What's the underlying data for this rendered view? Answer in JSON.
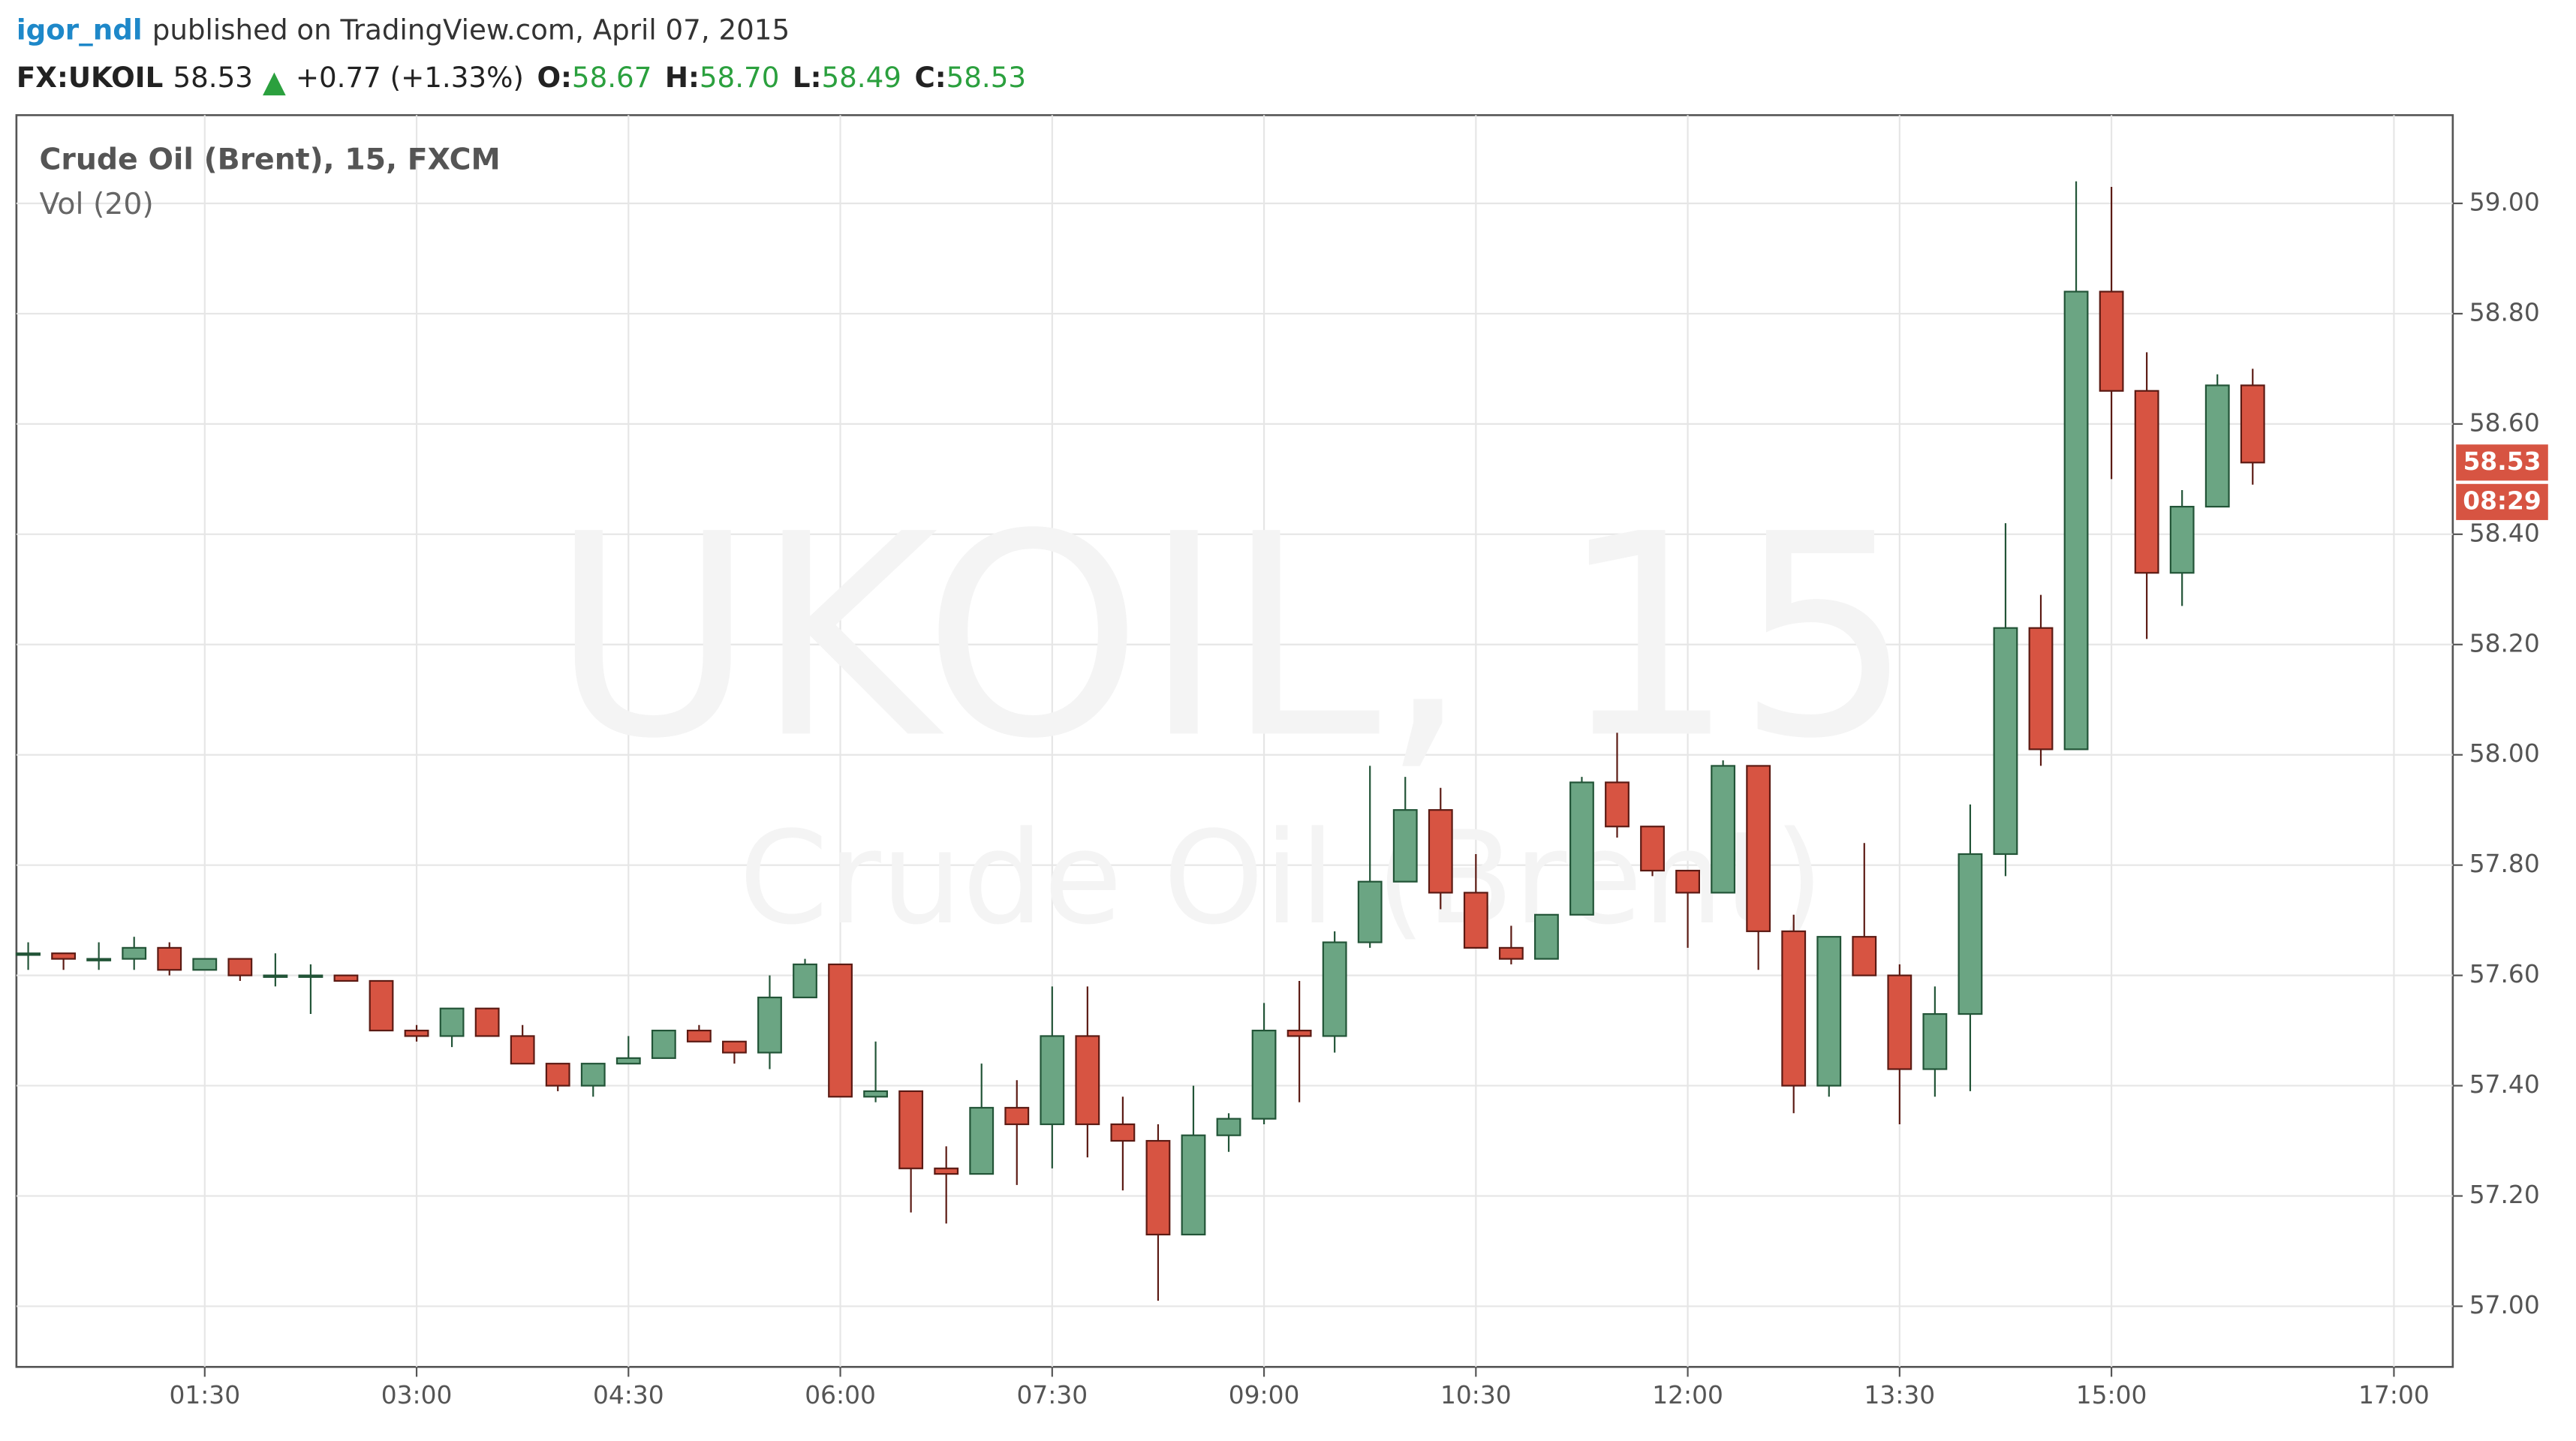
{
  "header": {
    "user": "igor_ndl",
    "published": "published on TradingView.com, April 07, 2015",
    "symbol": "FX:UKOIL",
    "last": "58.53",
    "change": "+0.77 (+1.33%)",
    "o_label": "O:",
    "open": "58.67",
    "h_label": "H:",
    "high": "58.70",
    "l_label": "L:",
    "low": "58.49",
    "c_label": "C:",
    "close": "58.53"
  },
  "chart_data": {
    "type": "candlestick",
    "title": "Crude Oil (Brent), 15, FXCM",
    "subtitle": "Vol (20)",
    "watermark": "UKOIL, 15",
    "watermark_sub": "Crude Oil (Brent)",
    "x": [
      "00:15",
      "00:30",
      "00:45",
      "01:00",
      "01:15",
      "01:30",
      "01:45",
      "02:00",
      "02:15",
      "02:30",
      "02:45",
      "03:00",
      "03:15",
      "03:30",
      "03:45",
      "04:00",
      "04:15",
      "04:30",
      "04:45",
      "05:00",
      "05:15",
      "05:30",
      "05:45",
      "06:00",
      "06:15",
      "06:30",
      "06:45",
      "07:00",
      "07:15",
      "07:30",
      "07:45",
      "08:00",
      "08:15",
      "08:30",
      "08:45",
      "09:00",
      "09:15",
      "09:30",
      "09:45",
      "10:00",
      "10:15",
      "10:30",
      "10:45",
      "11:00",
      "11:15",
      "11:30",
      "11:45",
      "12:00",
      "12:15",
      "12:30",
      "12:45",
      "13:00",
      "13:15",
      "13:30",
      "13:45",
      "14:00",
      "14:15",
      "14:30",
      "14:45",
      "15:00",
      "15:15",
      "15:30",
      "15:45",
      "16:00"
    ],
    "open": [
      57.64,
      57.64,
      57.63,
      57.63,
      57.65,
      57.61,
      57.63,
      57.6,
      57.6,
      57.6,
      57.59,
      57.5,
      57.49,
      57.54,
      57.49,
      57.44,
      57.4,
      57.44,
      57.45,
      57.5,
      57.48,
      57.46,
      57.56,
      57.62,
      57.38,
      57.39,
      57.25,
      57.24,
      57.36,
      57.33,
      57.49,
      57.33,
      57.3,
      57.13,
      57.31,
      57.34,
      57.5,
      57.49,
      57.66,
      57.77,
      57.9,
      57.75,
      57.65,
      57.63,
      57.71,
      57.95,
      57.87,
      57.79,
      57.75,
      57.98,
      57.68,
      57.4,
      57.67,
      57.6,
      57.43,
      57.53,
      57.82,
      58.23,
      58.01,
      58.84,
      58.66,
      58.33,
      58.45,
      58.67
    ],
    "high": [
      57.66,
      57.64,
      57.66,
      57.67,
      57.66,
      57.63,
      57.63,
      57.64,
      57.62,
      57.6,
      57.59,
      57.51,
      57.54,
      57.54,
      57.51,
      57.44,
      57.44,
      57.49,
      57.5,
      57.51,
      57.48,
      57.6,
      57.63,
      57.62,
      57.48,
      57.39,
      57.29,
      57.44,
      57.41,
      57.58,
      57.58,
      57.38,
      57.33,
      57.4,
      57.35,
      57.55,
      57.59,
      57.68,
      57.98,
      57.96,
      57.94,
      57.82,
      57.69,
      57.71,
      57.96,
      58.04,
      57.87,
      57.79,
      57.99,
      57.98,
      57.71,
      57.67,
      57.84,
      57.62,
      57.58,
      57.91,
      58.42,
      58.29,
      59.04,
      59.03,
      58.73,
      58.48,
      58.69,
      58.7
    ],
    "low": [
      57.61,
      57.61,
      57.61,
      57.61,
      57.6,
      57.61,
      57.59,
      57.58,
      57.53,
      57.59,
      57.5,
      57.48,
      57.47,
      57.49,
      57.44,
      57.39,
      57.38,
      57.44,
      57.45,
      57.48,
      57.44,
      57.43,
      57.56,
      57.38,
      57.37,
      57.17,
      57.15,
      57.24,
      57.22,
      57.25,
      57.27,
      57.21,
      57.01,
      57.13,
      57.28,
      57.33,
      57.37,
      57.46,
      57.65,
      57.77,
      57.72,
      57.65,
      57.62,
      57.63,
      57.71,
      57.85,
      57.78,
      57.65,
      57.75,
      57.61,
      57.35,
      57.38,
      57.6,
      57.33,
      57.38,
      57.39,
      57.78,
      57.98,
      58.01,
      58.5,
      58.21,
      58.27,
      58.45,
      58.49
    ],
    "close": [
      57.64,
      57.63,
      57.63,
      57.65,
      57.61,
      57.63,
      57.6,
      57.6,
      57.6,
      57.59,
      57.5,
      57.49,
      57.54,
      57.49,
      57.44,
      57.4,
      57.44,
      57.45,
      57.5,
      57.48,
      57.46,
      57.56,
      57.62,
      57.38,
      57.39,
      57.25,
      57.24,
      57.36,
      57.33,
      57.49,
      57.33,
      57.3,
      57.13,
      57.31,
      57.34,
      57.5,
      57.49,
      57.66,
      57.77,
      57.9,
      57.75,
      57.65,
      57.63,
      57.71,
      57.95,
      57.87,
      57.79,
      57.75,
      57.98,
      57.68,
      57.4,
      57.67,
      57.6,
      57.43,
      57.53,
      57.82,
      58.23,
      58.01,
      58.84,
      58.66,
      58.33,
      58.45,
      58.67,
      58.53
    ],
    "up_color": "#6ba583",
    "down_color": "#d75442",
    "xlim": [
      "00:10",
      "17:25"
    ],
    "xticks": [
      "01:30",
      "03:00",
      "04:30",
      "06:00",
      "07:30",
      "09:00",
      "10:30",
      "12:00",
      "13:30",
      "15:00",
      "17:00"
    ],
    "ylim": [
      56.89,
      59.16
    ],
    "yticks": [
      {
        "value": 57,
        "label": "57.00"
      },
      {
        "value": 57.2,
        "label": "57.20"
      },
      {
        "value": 57.4,
        "label": "57.40"
      },
      {
        "value": 57.6,
        "label": "57.60"
      },
      {
        "value": 57.8,
        "label": "57.80"
      },
      {
        "value": 58,
        "label": "58.00"
      },
      {
        "value": 58.2,
        "label": "58.20"
      },
      {
        "value": 58.4,
        "label": "58.40"
      },
      {
        "value": 58.6,
        "label": "58.60"
      },
      {
        "value": 58.8,
        "label": "58.80"
      },
      {
        "value": 59,
        "label": "59.00"
      }
    ],
    "grid": true,
    "last_price": 58.53,
    "countdown": "08:29"
  }
}
